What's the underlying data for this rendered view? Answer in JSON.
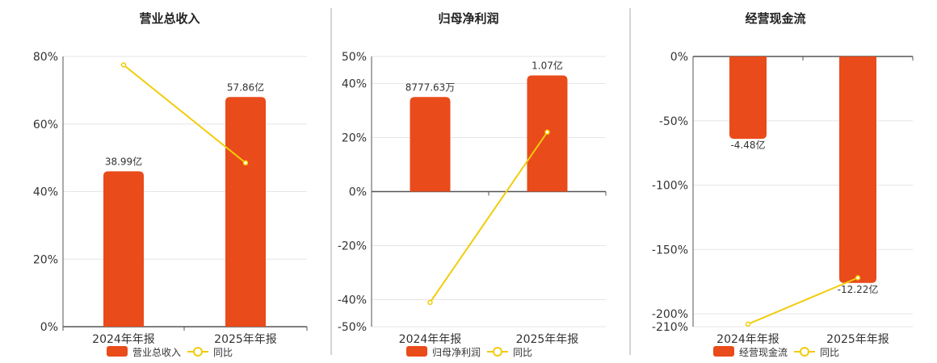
{
  "colors": {
    "bar": "#E94B1B",
    "line": "#F2CC0C",
    "grid": "#e6e6e6",
    "axis": "#555555",
    "separator": "#aaaaaa"
  },
  "chart_data": [
    {
      "type": "bar",
      "title": "营业总收入",
      "categories": [
        "2024年年报",
        "2025年年报"
      ],
      "ylim": [
        0,
        80
      ],
      "yticks": [
        0,
        20,
        40,
        60,
        80
      ],
      "tick_labels": [
        "0%",
        "20%",
        "40%",
        "60%",
        "80%"
      ],
      "series": [
        {
          "name": "营业总收入",
          "kind": "bar",
          "values": [
            46,
            68
          ],
          "labels": [
            "38.99亿",
            "57.86亿"
          ]
        },
        {
          "name": "同比",
          "kind": "line",
          "values": [
            77.5,
            48.5
          ]
        }
      ],
      "grid": true,
      "legend": "bottom"
    },
    {
      "type": "bar",
      "title": "归母净利润",
      "categories": [
        "2024年年报",
        "2025年年报"
      ],
      "ylim": [
        -50,
        50
      ],
      "yticks": [
        -50,
        -40,
        -20,
        0,
        20,
        40,
        50
      ],
      "tick_labels": [
        "-50%",
        "-40%",
        "-20%",
        "0%",
        "20%",
        "40%",
        "50%"
      ],
      "series": [
        {
          "name": "归母净利润",
          "kind": "bar",
          "values": [
            35,
            43
          ],
          "labels": [
            "8777.63万",
            "1.07亿"
          ]
        },
        {
          "name": "同比",
          "kind": "line",
          "values": [
            -41,
            22
          ]
        }
      ],
      "grid": true,
      "legend": "bottom"
    },
    {
      "type": "bar",
      "title": "经营现金流",
      "categories": [
        "2024年年报",
        "2025年年报"
      ],
      "ylim": [
        -210,
        0
      ],
      "yticks": [
        -210,
        -200,
        -150,
        -100,
        -50,
        0
      ],
      "tick_labels": [
        "-210%",
        "-200%",
        "-150%",
        "-100%",
        "-50%",
        "0%"
      ],
      "series": [
        {
          "name": "经营现金流",
          "kind": "bar",
          "values": [
            -64,
            -176
          ],
          "labels": [
            "-4.48亿",
            "-12.22亿"
          ]
        },
        {
          "name": "同比",
          "kind": "line",
          "values": [
            -208,
            -172
          ]
        }
      ],
      "grid": true,
      "legend": "bottom"
    }
  ]
}
